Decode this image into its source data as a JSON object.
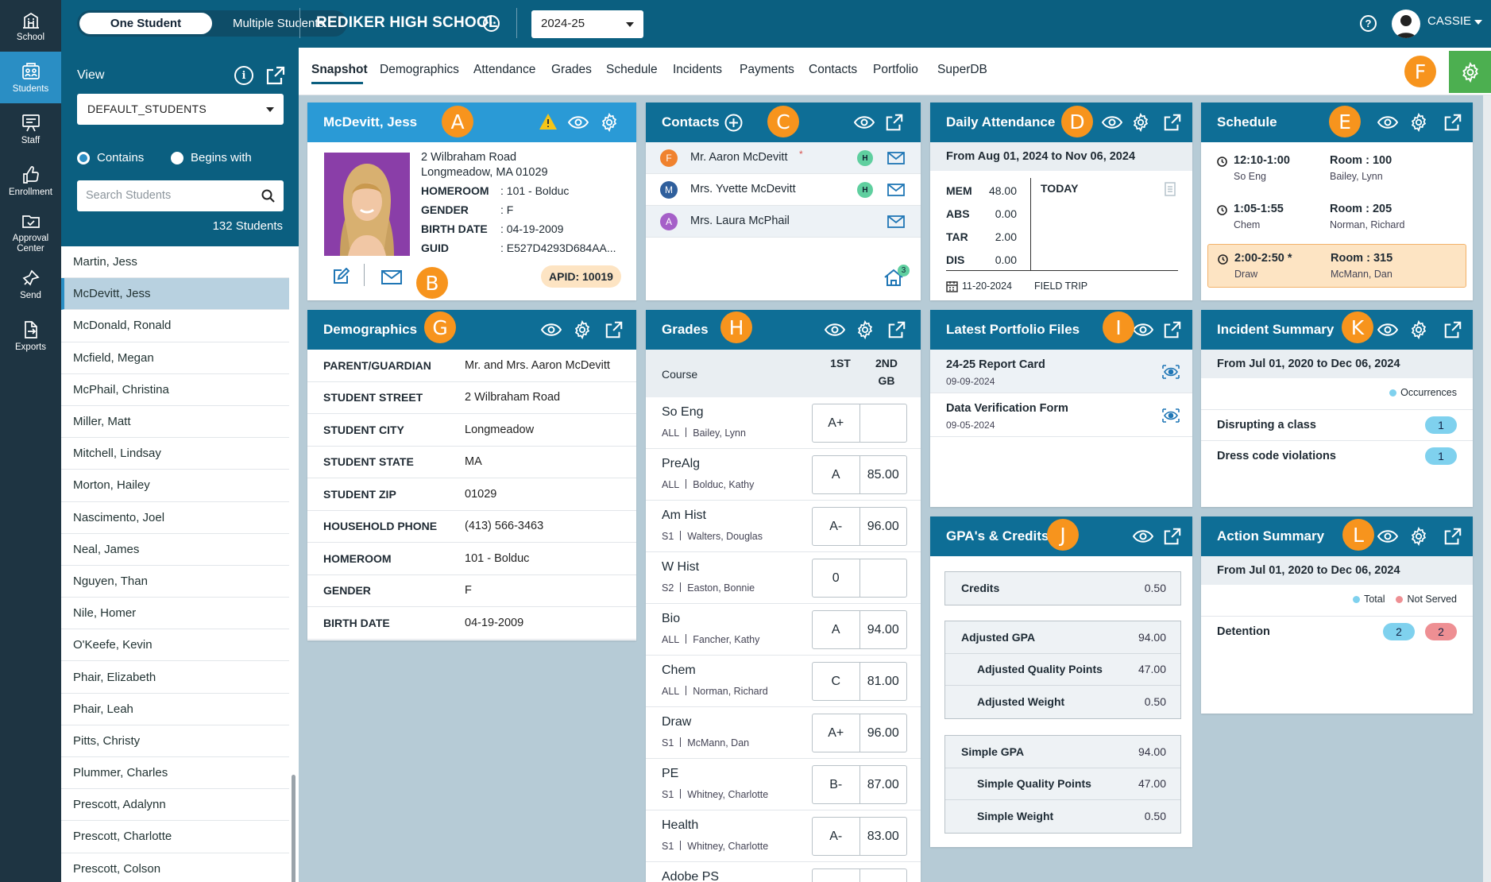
{
  "rail": [
    {
      "label": "School",
      "icon": "school-icon"
    },
    {
      "label": "Students",
      "icon": "students-icon",
      "active": true
    },
    {
      "label": "Staff",
      "icon": "staff-icon"
    },
    {
      "label": "Enrollment",
      "icon": "enrollment-icon"
    },
    {
      "label": "Approval Center",
      "icon": "approval-center-icon"
    },
    {
      "label": "Send",
      "icon": "send-icon"
    },
    {
      "label": "Exports",
      "icon": "exports-icon"
    }
  ],
  "topbar": {
    "toggle_one": "One Student",
    "toggle_multi": "Multiple Students",
    "school": "REDIKER HIGH SCHOOL",
    "year": "2024-25",
    "user": "CASSIE"
  },
  "left": {
    "view_label": "View",
    "view_value": "DEFAULT_STUDENTS",
    "radio_contains": "Contains",
    "radio_begins": "Begins with",
    "search_placeholder": "Search Students",
    "count": "132 Students",
    "students": [
      "Martin, Jess",
      "McDevitt, Jess",
      "McDonald, Ronald",
      "Mcfield, Megan",
      "McPhail, Christina",
      "Miller, Matt",
      "Mitchell, Lindsay",
      "Morton, Hailey",
      "Nascimento, Joel",
      "Neal, James",
      "Nguyen, Than",
      "Nile, Homer",
      "O'Keefe, Kevin",
      "Phair, Elizabeth",
      "Phair, Leah",
      "Pitts, Christy",
      "Plummer, Charles",
      "Prescott, Adalynn",
      "Prescott, Charlotte",
      "Prescott, Colson"
    ],
    "selected_index": 1
  },
  "tabs": [
    "Snapshot",
    "Demographics",
    "Attendance",
    "Grades",
    "Schedule",
    "Incidents",
    "Payments",
    "Contacts",
    "Portfolio",
    "SuperDB"
  ],
  "badges": {
    "a": "A",
    "b": "B",
    "c": "C",
    "d": "D",
    "e": "E",
    "f": "F",
    "g": "G",
    "h": "H",
    "i": "I",
    "j": "J",
    "k": "K",
    "l": "L"
  },
  "student": {
    "name": "McDevitt, Jess",
    "addr1": "2 Wilbraham Road",
    "addr2": "Longmeadow, MA 01029",
    "fields": [
      {
        "k": "HOMEROOM",
        "v": ": 101 - Bolduc"
      },
      {
        "k": "GENDER",
        "v": ": F"
      },
      {
        "k": "BIRTH DATE",
        "v": ": 04-19-2009"
      },
      {
        "k": "GUID",
        "v": ": E527D4293D684AA..."
      }
    ],
    "apid": "APID: 10019"
  },
  "contacts": {
    "title": "Contacts",
    "items": [
      {
        "initial": "F",
        "name": "Mr. Aaron McDevitt",
        "star": "*",
        "color": "#f0822e",
        "home": "H"
      },
      {
        "initial": "M",
        "name": "Mrs. Yvette McDevitt",
        "star": "",
        "color": "#2f5f9c",
        "home": "H"
      },
      {
        "initial": "A",
        "name": "Mrs. Laura McPhail",
        "star": "",
        "color": "#a560c8",
        "home": ""
      }
    ],
    "household_count": "3"
  },
  "attendance": {
    "title": "Daily Attendance",
    "range": "From Aug 01, 2024 to Nov 06, 2024",
    "stats": [
      {
        "k": "MEM",
        "v": "48.00"
      },
      {
        "k": "ABS",
        "v": "0.00"
      },
      {
        "k": "TAR",
        "v": "2.00"
      },
      {
        "k": "DIS",
        "v": "0.00"
      }
    ],
    "today": "TODAY",
    "date": "11-20-2024",
    "note": "FIELD TRIP"
  },
  "schedule": {
    "title": "Schedule",
    "items": [
      {
        "time": "12:10-1:00",
        "course": "So Eng",
        "room": "Room : 100",
        "teacher": "Bailey, Lynn",
        "current": false
      },
      {
        "time": "1:05-1:55",
        "course": "Chem",
        "room": "Room : 205",
        "teacher": "Norman, Richard",
        "current": false
      },
      {
        "time": "2:00-2:50 *",
        "course": "Draw",
        "room": "Room : 315",
        "teacher": "McMann, Dan",
        "current": true
      }
    ]
  },
  "demographics": {
    "title": "Demographics",
    "rows": [
      {
        "k": "PARENT/GUARDIAN",
        "v": "Mr. and Mrs. Aaron McDevitt"
      },
      {
        "k": "STUDENT STREET",
        "v": "2 Wilbraham Road"
      },
      {
        "k": "STUDENT CITY",
        "v": "Longmeadow"
      },
      {
        "k": "STUDENT STATE",
        "v": "MA"
      },
      {
        "k": "STUDENT ZIP",
        "v": "01029"
      },
      {
        "k": "HOUSEHOLD PHONE",
        "v": "(413) 566-3463"
      },
      {
        "k": "HOMEROOM",
        "v": "101 - Bolduc"
      },
      {
        "k": "GENDER",
        "v": "F"
      },
      {
        "k": "BIRTH DATE",
        "v": "04-19-2009"
      }
    ]
  },
  "grades": {
    "title": "Grades",
    "col_course": "Course",
    "col1": "1ST",
    "col2a": "2ND",
    "col2b": "GB",
    "rows": [
      {
        "course": "So Eng",
        "term": "ALL",
        "teacher": "Bailey, Lynn",
        "g1": "A+",
        "g2": ""
      },
      {
        "course": "PreAlg",
        "term": "ALL",
        "teacher": "Bolduc, Kathy",
        "g1": "A",
        "g2": "85.00"
      },
      {
        "course": "Am Hist",
        "term": "S1",
        "teacher": "Walters, Douglas",
        "g1": "A-",
        "g2": "96.00"
      },
      {
        "course": "W Hist",
        "term": "S2",
        "teacher": "Easton, Bonnie",
        "g1": "0",
        "g2": ""
      },
      {
        "course": "Bio",
        "term": "ALL",
        "teacher": "Fancher, Kathy",
        "g1": "A",
        "g2": "94.00"
      },
      {
        "course": "Chem",
        "term": "ALL",
        "teacher": "Norman, Richard",
        "g1": "C",
        "g2": "81.00"
      },
      {
        "course": "Draw",
        "term": "S1",
        "teacher": "McMann, Dan",
        "g1": "A+",
        "g2": "96.00"
      },
      {
        "course": "PE",
        "term": "S1",
        "teacher": "Whitney, Charlotte",
        "g1": "B-",
        "g2": "87.00"
      },
      {
        "course": "Health",
        "term": "S1",
        "teacher": "Whitney, Charlotte",
        "g1": "A-",
        "g2": "83.00"
      },
      {
        "course": "Adobe PS",
        "term": "",
        "teacher": "",
        "g1": "",
        "g2": ""
      }
    ]
  },
  "portfolio": {
    "title": "Latest Portfolio Files",
    "files": [
      {
        "name": "24-25 Report Card",
        "date": "09-09-2024"
      },
      {
        "name": "Data Verification Form",
        "date": "09-05-2024"
      }
    ]
  },
  "incidents": {
    "title": "Incident Summary",
    "range": "From Jul 01, 2020 to Dec 06, 2024",
    "legend": "Occurrences",
    "legend_color": "#7fd1ee",
    "items": [
      {
        "name": "Disrupting a class",
        "count": "1"
      },
      {
        "name": "Dress code violations",
        "count": "1"
      }
    ]
  },
  "gpa": {
    "title": "GPA's & Credits",
    "credits": {
      "k": "Credits",
      "v": "0.50"
    },
    "adjusted": [
      {
        "k": "Adjusted GPA",
        "v": "94.00"
      },
      {
        "k": "Adjusted Quality Points",
        "v": "47.00"
      },
      {
        "k": "Adjusted Weight",
        "v": "0.50"
      }
    ],
    "simple": [
      {
        "k": "Simple GPA",
        "v": "94.00"
      },
      {
        "k": "Simple Quality Points",
        "v": "47.00"
      },
      {
        "k": "Simple Weight",
        "v": "0.50"
      }
    ]
  },
  "actions": {
    "title": "Action Summary",
    "range": "From Jul 01, 2020 to Dec 06, 2024",
    "legend_total": "Total",
    "legend_not_served": "Not Served",
    "total_color": "#7fd1ee",
    "not_served_color": "#ee8f93",
    "items": [
      {
        "name": "Detention",
        "total": "2",
        "not_served": "2"
      }
    ]
  },
  "colors": {
    "header": "#0b5f80",
    "card_header": "#0e6e96",
    "badge": "#f7941d",
    "settings_green": "#4caf50"
  }
}
